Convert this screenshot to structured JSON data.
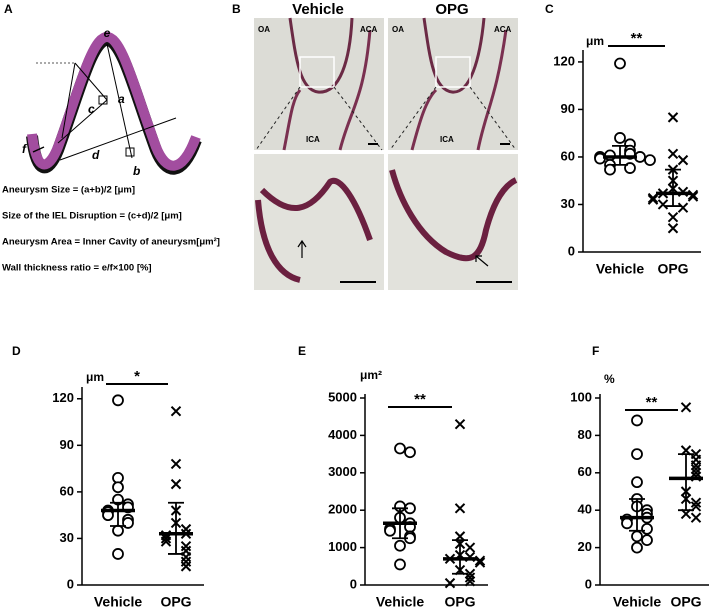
{
  "panel_a": {
    "label": "A",
    "points": [
      "e",
      "a",
      "b",
      "c",
      "d",
      "f"
    ],
    "formulas": [
      "Aneurysm Size = (a+b)/2 [μm]",
      "Size of the IEL Disruption = (c+d)/2 [μm]",
      "Aneurysm Area = Inner Cavity of aneurysm[μm²]",
      "Wall thickness ratio = e/f×100 [%]"
    ]
  },
  "panel_b": {
    "label": "B",
    "columns": [
      {
        "title": "Vehicle",
        "labels": [
          "OA",
          "ACA",
          "ICA"
        ]
      },
      {
        "title": "OPG",
        "labels": [
          "OA",
          "ACA",
          "ICA"
        ]
      }
    ]
  },
  "chart_data": [
    {
      "type": "dotplot",
      "label": "C",
      "y_label": "μm",
      "significance": "**",
      "categories": [
        "Vehicle",
        "OPG"
      ],
      "markers": [
        "circle",
        "cross"
      ],
      "values": [
        [
          119,
          72,
          68,
          64,
          62,
          61,
          60,
          60,
          59,
          58,
          55,
          53,
          52
        ],
        [
          85,
          62,
          58,
          52,
          45,
          40,
          38,
          37,
          36,
          35,
          34,
          33,
          30,
          28,
          22,
          15
        ]
      ],
      "centers": [
        60,
        37
      ],
      "lower": [
        55,
        29
      ],
      "upper": [
        67,
        52
      ],
      "ylim": [
        0,
        125
      ],
      "yticks": [
        0,
        30,
        60,
        90,
        120
      ]
    },
    {
      "type": "dotplot",
      "label": "D",
      "y_label": "μm",
      "significance": "*",
      "categories": [
        "Vehicle",
        "OPG"
      ],
      "markers": [
        "circle",
        "cross"
      ],
      "values": [
        [
          119,
          69,
          63,
          55,
          52,
          50,
          48,
          47,
          45,
          42,
          40,
          35,
          20
        ],
        [
          112,
          78,
          65,
          48,
          40,
          36,
          33,
          32,
          30,
          28,
          25,
          22,
          18,
          15,
          12
        ]
      ],
      "centers": [
        48,
        33
      ],
      "lower": [
        38,
        20
      ],
      "upper": [
        53,
        53
      ],
      "ylim": [
        0,
        125
      ],
      "yticks": [
        0,
        30,
        60,
        90,
        120
      ]
    },
    {
      "type": "dotplot",
      "label": "E",
      "y_label": "μm²",
      "significance": "**",
      "categories": [
        "Vehicle",
        "OPG"
      ],
      "markers": [
        "circle",
        "cross"
      ],
      "values": [
        [
          3650,
          3550,
          2100,
          2050,
          1800,
          1650,
          1550,
          1500,
          1450,
          1300,
          1250,
          1050,
          550
        ],
        [
          4300,
          2050,
          1300,
          1100,
          1000,
          800,
          750,
          700,
          650,
          600,
          400,
          300,
          200,
          100,
          50
        ]
      ],
      "centers": [
        1650,
        700
      ],
      "lower": [
        1250,
        300
      ],
      "upper": [
        2050,
        1200
      ],
      "ylim": [
        0,
        5000
      ],
      "yticks": [
        0,
        1000,
        2000,
        3000,
        4000,
        5000
      ]
    },
    {
      "type": "dotplot",
      "label": "F",
      "y_label": "%",
      "significance": "**",
      "categories": [
        "Vehicle",
        "OPG"
      ],
      "markers": [
        "circle",
        "cross"
      ],
      "values": [
        [
          88,
          70,
          55,
          46,
          42,
          40,
          38,
          36,
          35,
          33,
          30,
          26,
          24,
          20
        ],
        [
          95,
          72,
          70,
          67,
          64,
          62,
          60,
          58,
          50,
          46,
          44,
          42,
          38,
          36
        ]
      ],
      "centers": [
        36,
        57
      ],
      "lower": [
        29,
        40
      ],
      "upper": [
        46,
        70
      ],
      "ylim": [
        0,
        100
      ],
      "yticks": [
        0,
        20,
        40,
        60,
        80,
        100
      ]
    }
  ]
}
